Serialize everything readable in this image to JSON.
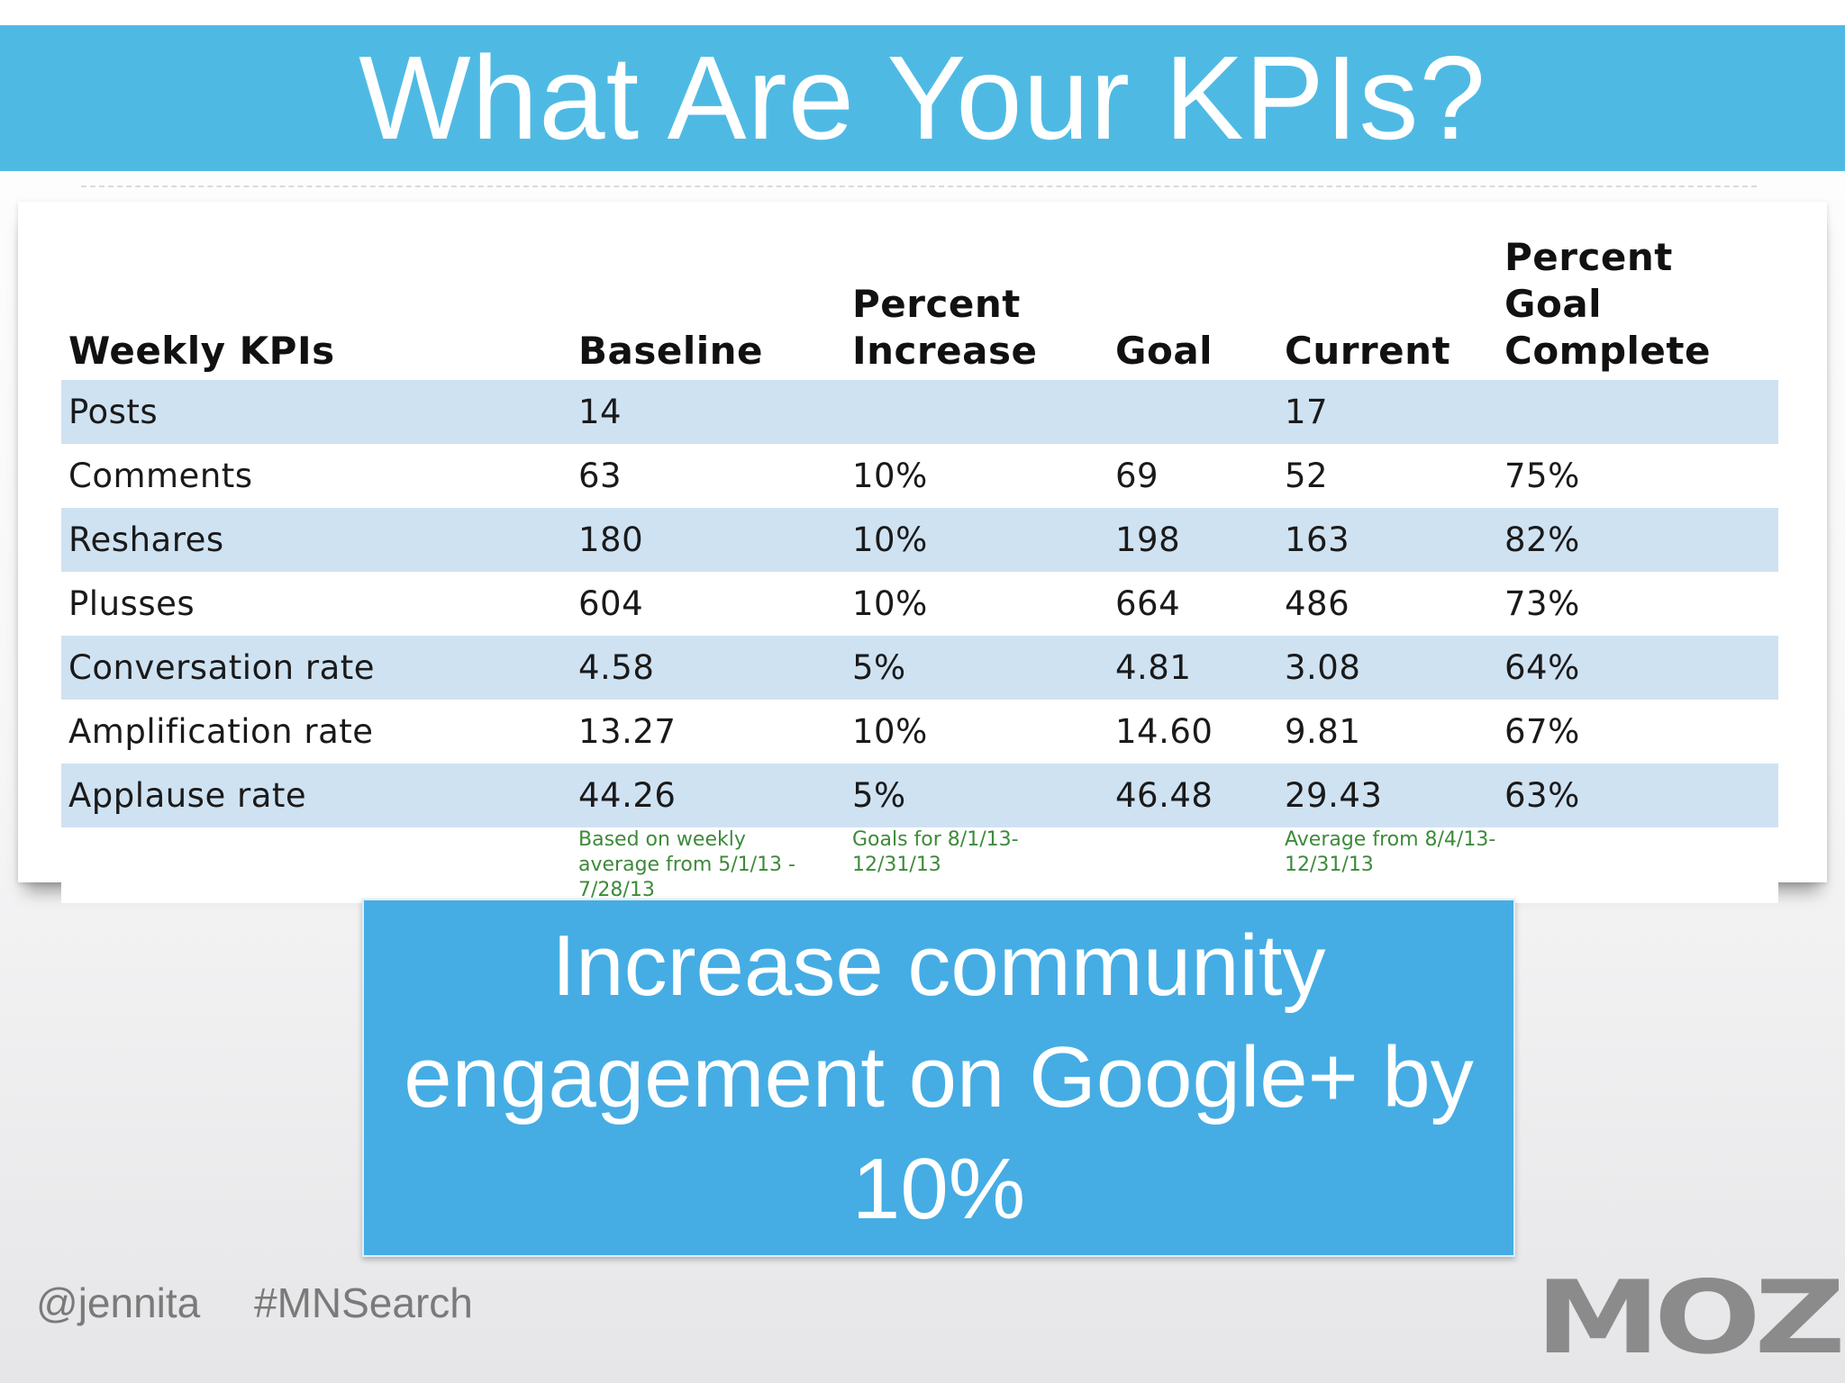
{
  "slide": {
    "title": "What Are Your KPIs?"
  },
  "table": {
    "headers": {
      "kpi": "Weekly KPIs",
      "baseline": "Baseline",
      "percent_increase": "Percent Increase",
      "goal": "Goal",
      "current": "Current",
      "percent_goal_complete": "Percent Goal Complete"
    },
    "rows": [
      {
        "kpi": "Posts",
        "baseline": "14",
        "percent_increase": "",
        "goal": "",
        "current": "17",
        "percent_goal_complete": ""
      },
      {
        "kpi": "Comments",
        "baseline": "63",
        "percent_increase": "10%",
        "goal": "69",
        "current": "52",
        "percent_goal_complete": "75%"
      },
      {
        "kpi": "Reshares",
        "baseline": "180",
        "percent_increase": "10%",
        "goal": "198",
        "current": "163",
        "percent_goal_complete": "82%"
      },
      {
        "kpi": "Plusses",
        "baseline": "604",
        "percent_increase": "10%",
        "goal": "664",
        "current": "486",
        "percent_goal_complete": "73%"
      },
      {
        "kpi": "Conversation rate",
        "baseline": "4.58",
        "percent_increase": "5%",
        "goal": "4.81",
        "current": "3.08",
        "percent_goal_complete": "64%"
      },
      {
        "kpi": "Amplification rate",
        "baseline": "13.27",
        "percent_increase": "10%",
        "goal": "14.60",
        "current": "9.81",
        "percent_goal_complete": "67%"
      },
      {
        "kpi": "Applause rate",
        "baseline": "44.26",
        "percent_increase": "5%",
        "goal": "46.48",
        "current": "29.43",
        "percent_goal_complete": "63%"
      }
    ],
    "notes": {
      "baseline": "Based on weekly average from 5/1/13 - 7/28/13",
      "percent_increase": "Goals for 8/1/13-12/31/13",
      "current": "Average from 8/4/13-12/31/13"
    }
  },
  "goal_statement": "Increase community engagement on Google+ by 10%",
  "footer": {
    "handle": "@jennita",
    "hashtag": "#MNSearch",
    "logo_text": "MOZ"
  },
  "colors": {
    "banner": "#4ebae4",
    "goal_box": "#45ade4",
    "row_stripe": "#cfe2f2",
    "note_text": "#3d8a3a"
  }
}
